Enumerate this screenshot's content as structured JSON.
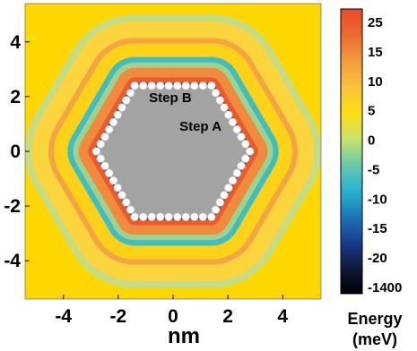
{
  "chart_data": {
    "type": "heatmap",
    "title": "",
    "xlabel": "nm",
    "ylabel": "",
    "xlim": [
      -5.4,
      5.4
    ],
    "ylim": [
      -5.4,
      5.4
    ],
    "x_ticks": [
      -4,
      -2,
      0,
      2,
      4
    ],
    "y_ticks": [
      -4,
      -2,
      0,
      2,
      4
    ],
    "x_tick_labels": [
      "-4",
      "-2",
      "0",
      "2",
      "4"
    ],
    "y_tick_labels": [
      "-4",
      "-2",
      "0",
      "2",
      "4"
    ],
    "grid": false,
    "island": {
      "shape": "hexagon",
      "vertices_nm": [
        [
          -1.4,
          2.4
        ],
        [
          1.4,
          2.4
        ],
        [
          2.8,
          0
        ],
        [
          1.4,
          -2.4
        ],
        [
          -1.4,
          -2.4
        ],
        [
          -2.8,
          0
        ]
      ],
      "fill": "#a3a3a3",
      "edge_atoms": "white circles"
    },
    "energy_rings": [
      {
        "offset_nm": 0.0,
        "energy_meV": -1400,
        "color": "#050a16"
      },
      {
        "offset_nm": 0.1,
        "energy_meV": -15,
        "color": "#1f4a8c"
      },
      {
        "offset_nm": 0.3,
        "energy_meV": 25,
        "color": "#ea5a2c"
      },
      {
        "offset_nm": 0.65,
        "energy_meV": 12,
        "color": "#f08a3c"
      },
      {
        "offset_nm": 0.85,
        "energy_meV": -2,
        "color": "#9fd28f"
      },
      {
        "offset_nm": 1.05,
        "energy_meV": -6,
        "color": "#3fbec2"
      },
      {
        "offset_nm": 1.55,
        "energy_meV": 3,
        "color": "#ffd21a"
      },
      {
        "offset_nm": 1.75,
        "energy_meV": 10,
        "color": "#f4a443"
      },
      {
        "offset_nm": 2.35,
        "energy_meV": 2,
        "color": "#fcd43b"
      },
      {
        "offset_nm": 2.6,
        "energy_meV": -1,
        "color": "#c4dc86"
      },
      {
        "offset_nm": 3.1,
        "energy_meV": 0,
        "color": "#ffd700"
      }
    ],
    "background_energy_meV": 0,
    "background_color": "#ffd700",
    "annotations": [
      {
        "text": "Step B",
        "x": -0.1,
        "y": 1.8
      },
      {
        "text": "Step A",
        "x": 1.0,
        "y": 0.75
      }
    ],
    "colorbar": {
      "label_line1": "Energy",
      "label_line2": "(meV)",
      "tick_labels": [
        "25",
        "15",
        "10",
        "5",
        "0",
        "-5",
        "-10",
        "-15",
        "-20",
        "-1400"
      ],
      "gradient_top_to_bottom": [
        "#e8492c",
        "#ec6a30",
        "#f39c3c",
        "#f8c23a",
        "#ffde14",
        "#c9e36a",
        "#6ccaa7",
        "#28b4d0",
        "#1d78b8",
        "#173c8e",
        "#101a3c",
        "#000000"
      ]
    }
  }
}
